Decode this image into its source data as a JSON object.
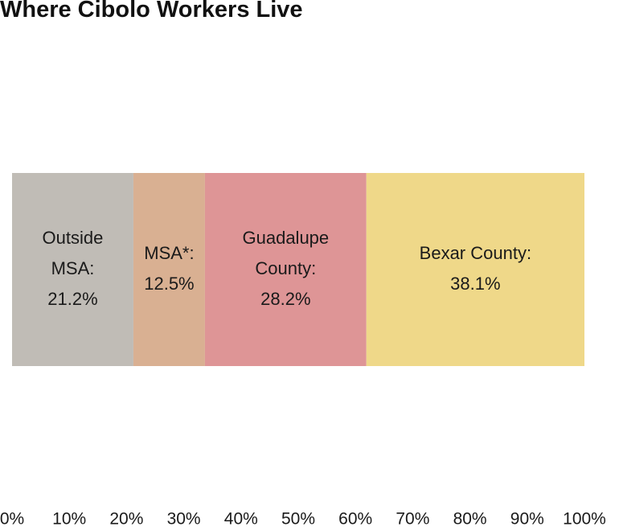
{
  "chart_data": {
    "type": "bar",
    "orientation": "horizontal",
    "stacked": true,
    "title": "Where Cibolo Workers Live",
    "categories": [
      ""
    ],
    "series": [
      {
        "name": "Outside MSA",
        "values": [
          21.2
        ],
        "color": "#c0bcb6",
        "label_lines": [
          "Outside",
          "MSA:",
          "21.2%"
        ]
      },
      {
        "name": "MSA*",
        "values": [
          12.5
        ],
        "color": "#d9b092",
        "label_lines": [
          "MSA*:",
          "12.5%"
        ]
      },
      {
        "name": "Guadalupe County",
        "values": [
          28.2
        ],
        "color": "#de9596",
        "label_lines": [
          "Guadalupe",
          "County:",
          "28.2%"
        ]
      },
      {
        "name": "Bexar County",
        "values": [
          38.1
        ],
        "color": "#efd889",
        "label_lines": [
          "Bexar County:",
          "38.1%"
        ]
      }
    ],
    "xlim": [
      0,
      100
    ],
    "x_ticks": [
      "0%",
      "10%",
      "20%",
      "30%",
      "40%",
      "50%",
      "60%",
      "70%",
      "80%",
      "90%",
      "100%"
    ],
    "grid": false,
    "legend": "none"
  }
}
